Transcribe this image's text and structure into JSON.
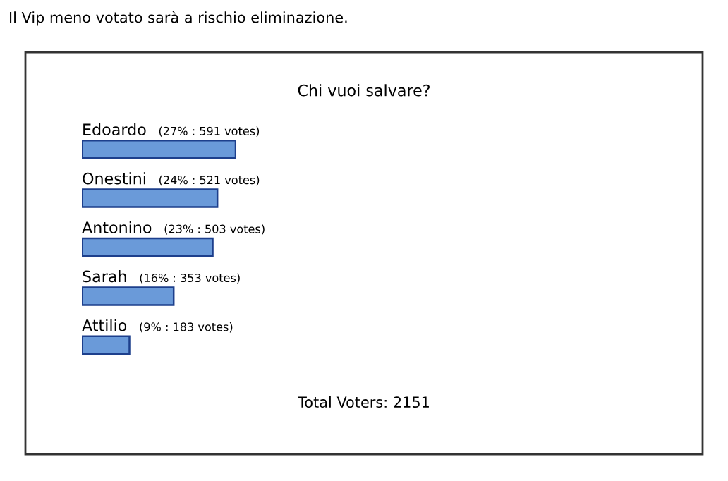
{
  "chart_data": {
    "type": "bar",
    "orientation": "horizontal",
    "subtitle": "Il Vip meno votato sarà a rischio eliminazione.",
    "title": "Chi vuoi salvare?",
    "categories": [
      "Edoardo",
      "Onestini",
      "Antonino",
      "Sarah",
      "Attilio"
    ],
    "values": [
      591,
      521,
      503,
      353,
      183
    ],
    "value_labels": [
      "(27% : 591 votes)",
      "(24% : 521 votes)",
      "(23% : 503 votes)",
      "(16% : 353 votes)",
      "(9% : 183 votes)"
    ],
    "color": "#6a9ad9",
    "annotations": [
      "Total Voters: 2151"
    ]
  }
}
